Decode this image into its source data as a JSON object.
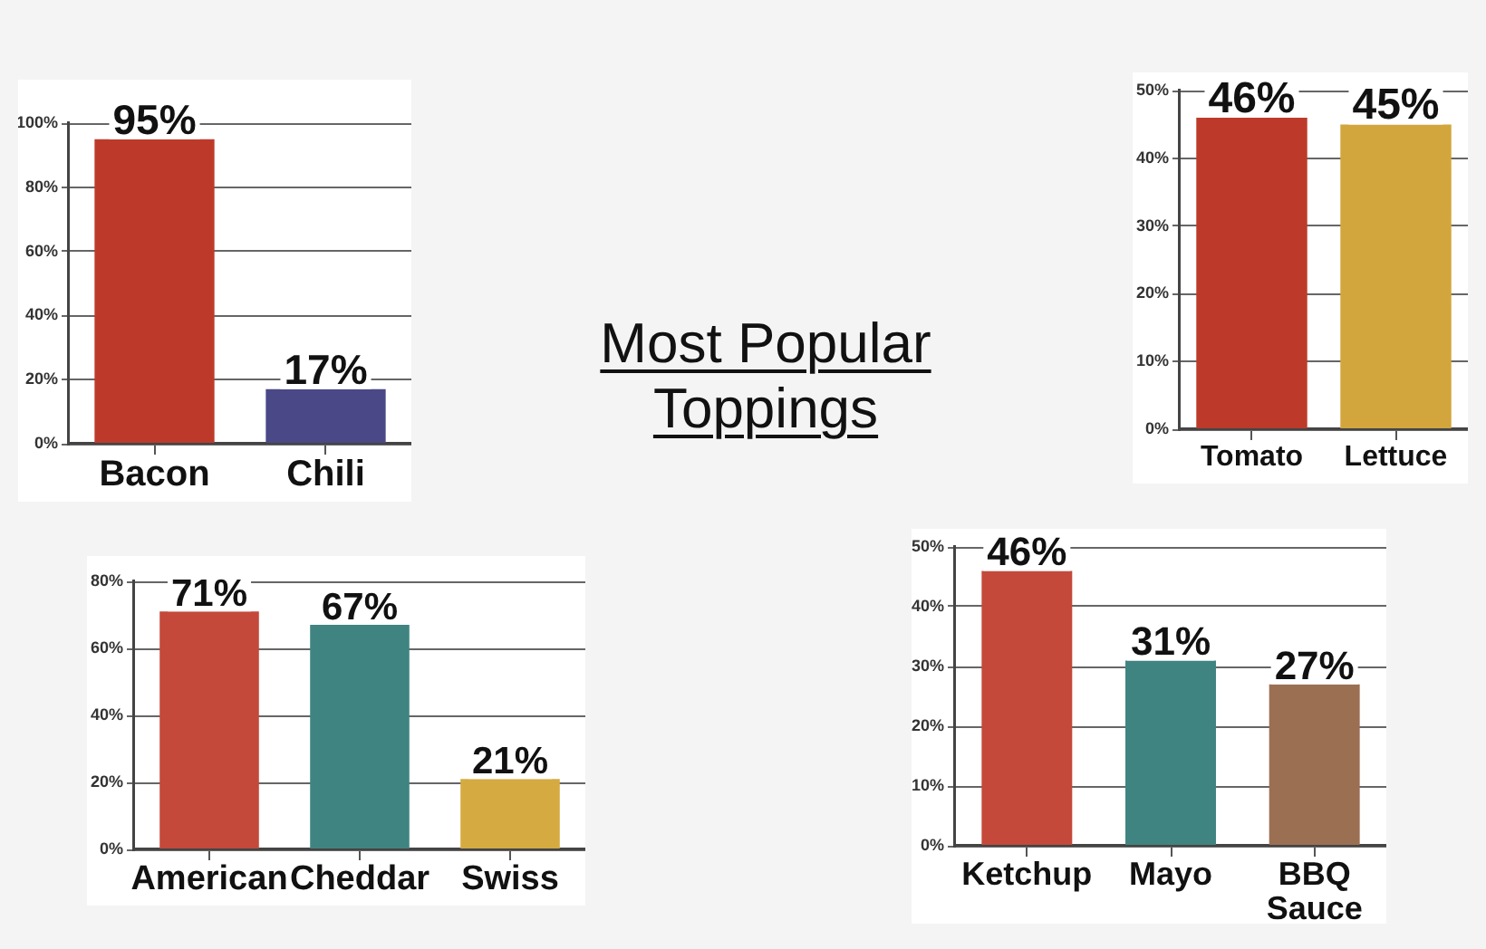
{
  "chart_data": [
    {
      "type": "bar",
      "categories": [
        "Bacon",
        "Chili"
      ],
      "values": [
        95,
        17
      ],
      "colors": [
        "#bd3a2b",
        "#4a4886"
      ],
      "value_labels": [
        "95%",
        "17%"
      ],
      "ylim": [
        0,
        100
      ],
      "yticks": [
        {
          "value": 0,
          "label": "0%"
        },
        {
          "value": 20,
          "label": "20%"
        },
        {
          "value": 40,
          "label": "40%"
        },
        {
          "value": 60,
          "label": "60%"
        },
        {
          "value": 80,
          "label": "80%"
        },
        {
          "value": 100,
          "label": "100%"
        }
      ],
      "grid": "y"
    },
    {
      "type": "bar",
      "categories": [
        "Tomato",
        "Lettuce"
      ],
      "values": [
        46,
        45
      ],
      "colors": [
        "#bd3a2a",
        "#d2a63c"
      ],
      "value_labels": [
        "46%",
        "45%"
      ],
      "ylim": [
        0,
        50
      ],
      "yticks": [
        {
          "value": 0,
          "label": "0%"
        },
        {
          "value": 10,
          "label": "10%"
        },
        {
          "value": 20,
          "label": "20%"
        },
        {
          "value": 30,
          "label": "30%"
        },
        {
          "value": 40,
          "label": "40%"
        },
        {
          "value": 50,
          "label": "50%"
        }
      ],
      "grid": "y"
    },
    {
      "type": "other",
      "title": "Most Popular Toppings"
    },
    {
      "type": "bar",
      "categories": [
        "American",
        "Cheddar",
        "Swiss"
      ],
      "values": [
        71,
        67,
        21
      ],
      "colors": [
        "#c4493a",
        "#3f8481",
        "#d5aa40"
      ],
      "value_labels": [
        "71%",
        "67%",
        "21%"
      ],
      "ylim": [
        0,
        80
      ],
      "yticks": [
        {
          "value": 0,
          "label": "0%"
        },
        {
          "value": 20,
          "label": "20%"
        },
        {
          "value": 40,
          "label": "40%"
        },
        {
          "value": 60,
          "label": "60%"
        },
        {
          "value": 80,
          "label": "80%"
        }
      ],
      "grid": "y"
    },
    {
      "type": "bar",
      "categories": [
        "Ketchup",
        "Mayo",
        "BBQ Sauce"
      ],
      "values": [
        46,
        31,
        27
      ],
      "colors": [
        "#c4493a",
        "#3f8481",
        "#9b6f52"
      ],
      "value_labels": [
        "46%",
        "31%",
        "27%"
      ],
      "ylim": [
        0,
        50
      ],
      "yticks": [
        {
          "value": 0,
          "label": "0%"
        },
        {
          "value": 10,
          "label": "10%"
        },
        {
          "value": 20,
          "label": "20%"
        },
        {
          "value": 30,
          "label": "30%"
        },
        {
          "value": 40,
          "label": "40%"
        },
        {
          "value": 50,
          "label": "50%"
        }
      ],
      "grid": "y"
    }
  ]
}
